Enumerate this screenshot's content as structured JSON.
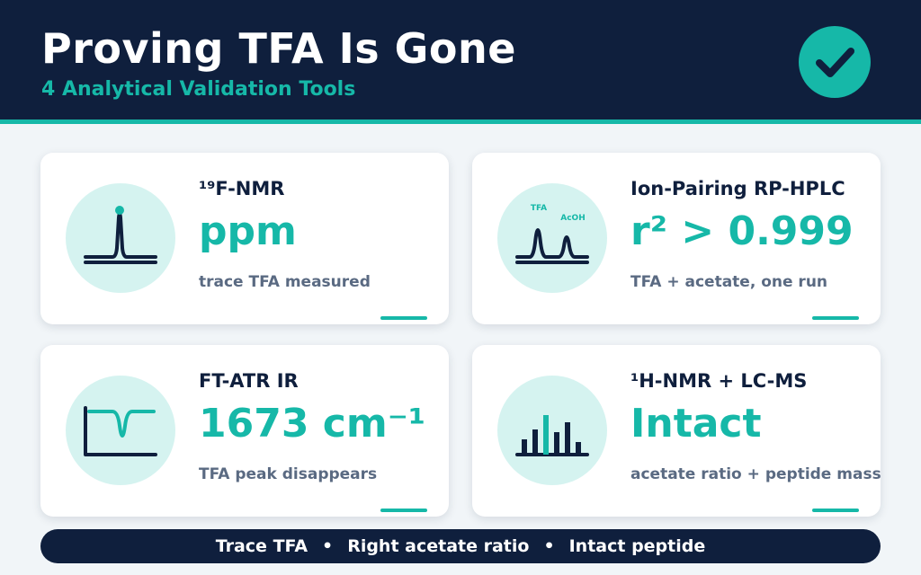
{
  "header": {
    "title": "Proving TFA Is Gone",
    "subtitle": "4 Analytical Validation Tools",
    "badge_icon": "checkmark-icon"
  },
  "cards": [
    {
      "title": "¹⁹F-NMR",
      "value": "ppm",
      "description": "trace TFA measured",
      "icon": "nmr-single-peak-icon"
    },
    {
      "title": "Ion-Pairing RP-HPLC",
      "value": "r² > 0.999",
      "description": "TFA + acetate, one run",
      "icon": "hplc-two-peaks-icon",
      "icon_labels": {
        "peak1": "TFA",
        "peak2": "AcOH"
      }
    },
    {
      "title": "FT-ATR IR",
      "value": "1673 cm⁻¹",
      "description": "TFA peak disappears",
      "icon": "ir-spectrum-dip-icon"
    },
    {
      "title": "¹H-NMR + LC-MS",
      "value": "Intact",
      "description": "acetate ratio + peptide mass",
      "icon": "mass-spectrum-bars-icon"
    }
  ],
  "footer": {
    "items": [
      "Trace TFA",
      "Right acetate ratio",
      "Intact peptide"
    ],
    "separator": "•"
  },
  "colors": {
    "navy": "#0f1f3d",
    "teal": "#16b8a8",
    "icon_bg": "#d5f3f0",
    "muted_text": "#5a6a82",
    "page_bg": "#f1f5f8"
  }
}
